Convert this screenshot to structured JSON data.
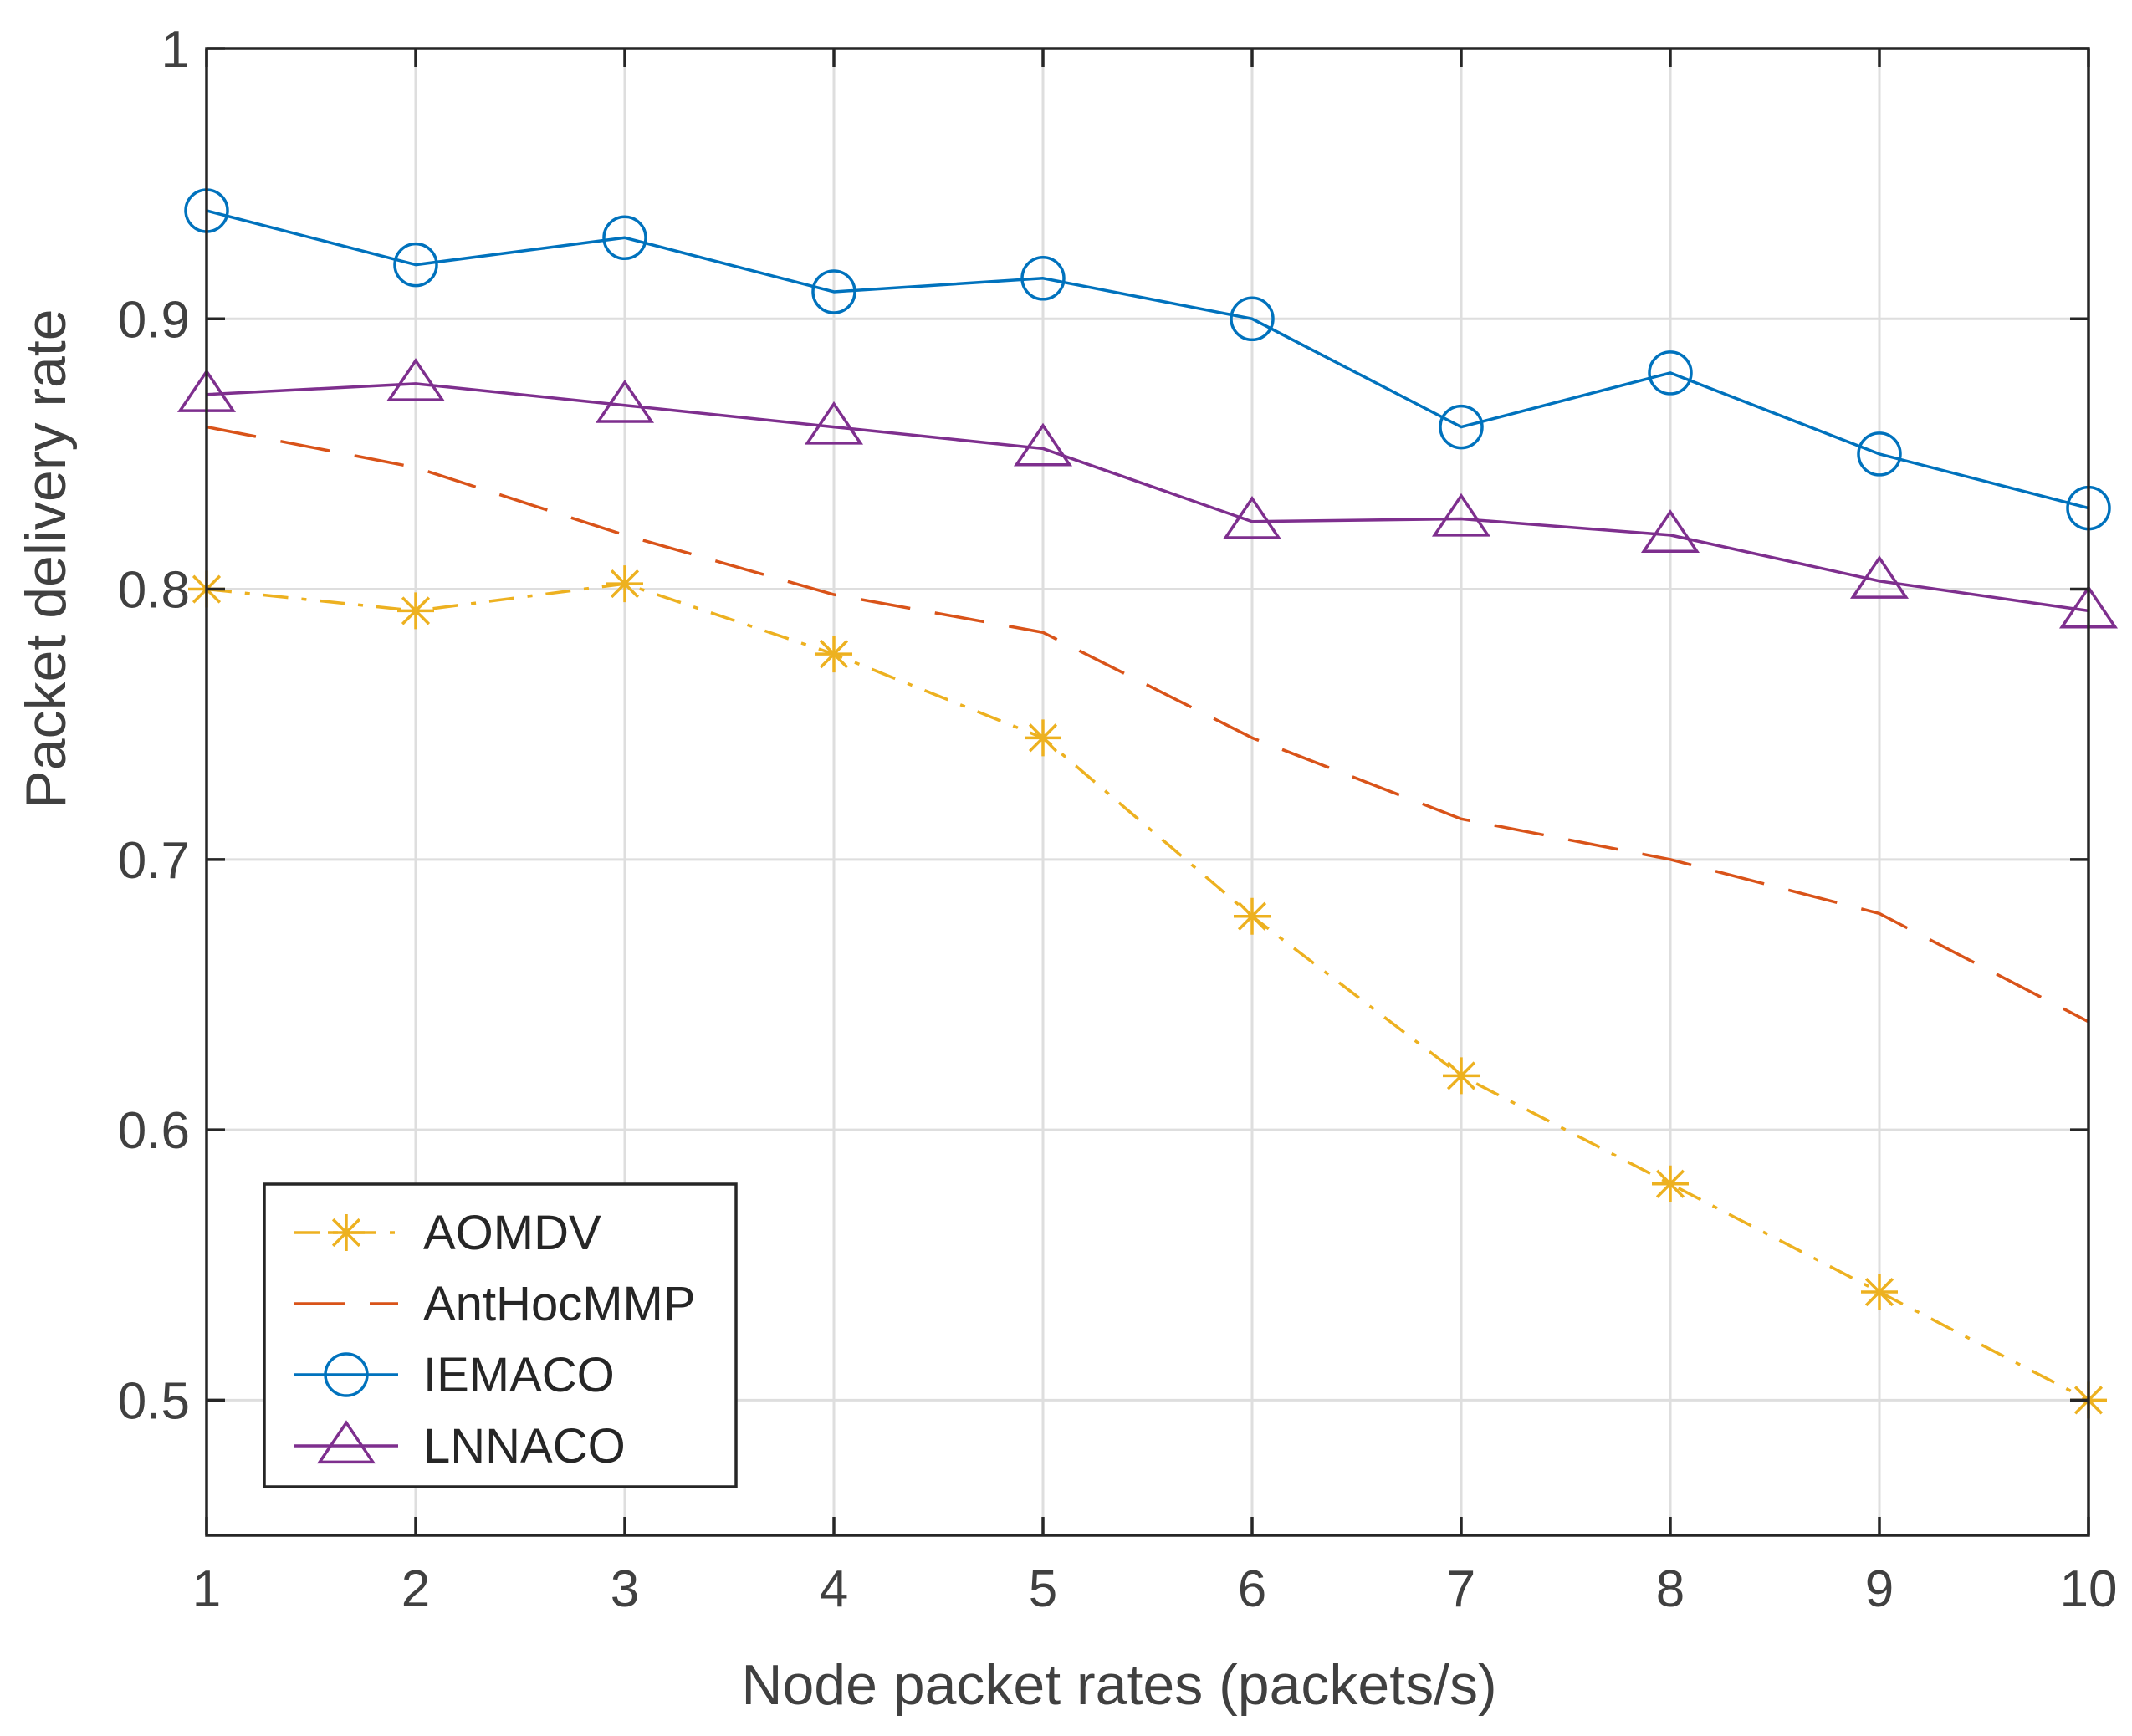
{
  "chart_data": {
    "type": "line",
    "title": "",
    "xlabel": "Node packet rates (packets/s)",
    "ylabel": "Packet delivery rate",
    "xlim": [
      1,
      10
    ],
    "ylim": [
      0.45,
      1.0
    ],
    "x": [
      1,
      2,
      3,
      4,
      5,
      6,
      7,
      8,
      9,
      10
    ],
    "xticks": [
      1,
      2,
      3,
      4,
      5,
      6,
      7,
      8,
      9,
      10
    ],
    "xtick_labels": [
      "1",
      "2",
      "3",
      "4",
      "5",
      "6",
      "7",
      "8",
      "9",
      "10"
    ],
    "yticks": [
      0.5,
      0.6,
      0.7,
      0.8,
      0.9,
      1.0
    ],
    "ytick_labels": [
      "0.5",
      "0.6",
      "0.7",
      "0.8",
      "0.9",
      "1"
    ],
    "grid": true,
    "legend_position": "bottom-left",
    "series": [
      {
        "name": "AOMDV",
        "color": "#EDB120",
        "line": "dashdot",
        "marker": "star",
        "values": [
          0.8,
          0.792,
          0.802,
          0.776,
          0.745,
          0.679,
          0.62,
          0.58,
          0.54,
          0.5
        ]
      },
      {
        "name": "AntHocMMP",
        "color": "#D95319",
        "line": "dashed",
        "marker": "none",
        "values": [
          0.86,
          0.845,
          0.82,
          0.798,
          0.784,
          0.745,
          0.715,
          0.7,
          0.68,
          0.64
        ]
      },
      {
        "name": "IEMACO",
        "color": "#0072BD",
        "line": "solid",
        "marker": "circle",
        "values": [
          0.94,
          0.92,
          0.93,
          0.91,
          0.915,
          0.9,
          0.86,
          0.88,
          0.85,
          0.83
        ]
      },
      {
        "name": "LNNACO",
        "color": "#7E2F8E",
        "line": "solid",
        "marker": "triangle",
        "values": [
          0.872,
          0.876,
          0.868,
          0.86,
          0.852,
          0.825,
          0.826,
          0.82,
          0.803,
          0.792
        ]
      }
    ]
  }
}
